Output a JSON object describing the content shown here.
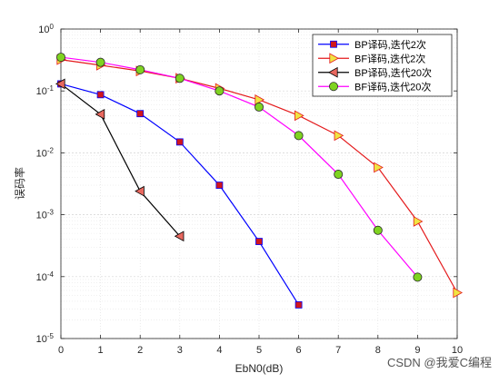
{
  "chart_data": {
    "type": "line",
    "xlabel": "EbN0(dB)",
    "ylabel": "误码率",
    "xlim": [
      0,
      10
    ],
    "ylim": [
      1e-05,
      1
    ],
    "y_scale": "log",
    "x_ticks": [
      0,
      1,
      2,
      3,
      4,
      5,
      6,
      7,
      8,
      9,
      10
    ],
    "y_ticks": [
      {
        "value": 1,
        "base": "10",
        "exp": "0"
      },
      {
        "value": 0.1,
        "base": "10",
        "exp": "-1"
      },
      {
        "value": 0.01,
        "base": "10",
        "exp": "-2"
      },
      {
        "value": 0.001,
        "base": "10",
        "exp": "-3"
      },
      {
        "value": 0.0001,
        "base": "10",
        "exp": "-4"
      },
      {
        "value": 1e-05,
        "base": "10",
        "exp": "-5"
      }
    ],
    "grid": true,
    "minor_grid": true,
    "legend_position": "top-right",
    "series": [
      {
        "name": "BP译码,迭代2次",
        "color": "#0000ff",
        "marker": "square",
        "marker_fill": "#d0161b",
        "x": [
          0,
          1,
          2,
          3,
          4,
          5,
          6
        ],
        "y": [
          0.13,
          0.087,
          0.043,
          0.015,
          0.003,
          0.00037,
          3.5e-05
        ]
      },
      {
        "name": "BF译码,迭代2次",
        "color": "#e41a1c",
        "marker": "triangle-right",
        "marker_fill": "#f0e442",
        "x": [
          0,
          1,
          2,
          3,
          4,
          5,
          6,
          7,
          8,
          9,
          10
        ],
        "y": [
          0.32,
          0.26,
          0.21,
          0.16,
          0.11,
          0.072,
          0.04,
          0.019,
          0.0058,
          0.00078,
          5.5e-05
        ]
      },
      {
        "name": "BP译码,迭代20次",
        "color": "#000000",
        "marker": "triangle-left",
        "marker_fill": "#e8685f",
        "x": [
          0,
          1,
          2,
          3
        ],
        "y": [
          0.13,
          0.042,
          0.0024,
          0.00045
        ]
      },
      {
        "name": "BF译码,迭代20次",
        "color": "#ff00ff",
        "marker": "circle",
        "marker_fill": "#7fd321",
        "x": [
          0,
          1,
          2,
          3,
          4,
          5,
          6,
          7,
          8,
          9
        ],
        "y": [
          0.35,
          0.29,
          0.22,
          0.16,
          0.1,
          0.055,
          0.019,
          0.0045,
          0.00056,
          9.8e-05
        ]
      }
    ]
  },
  "watermark": "CSDN @我爱C编程"
}
